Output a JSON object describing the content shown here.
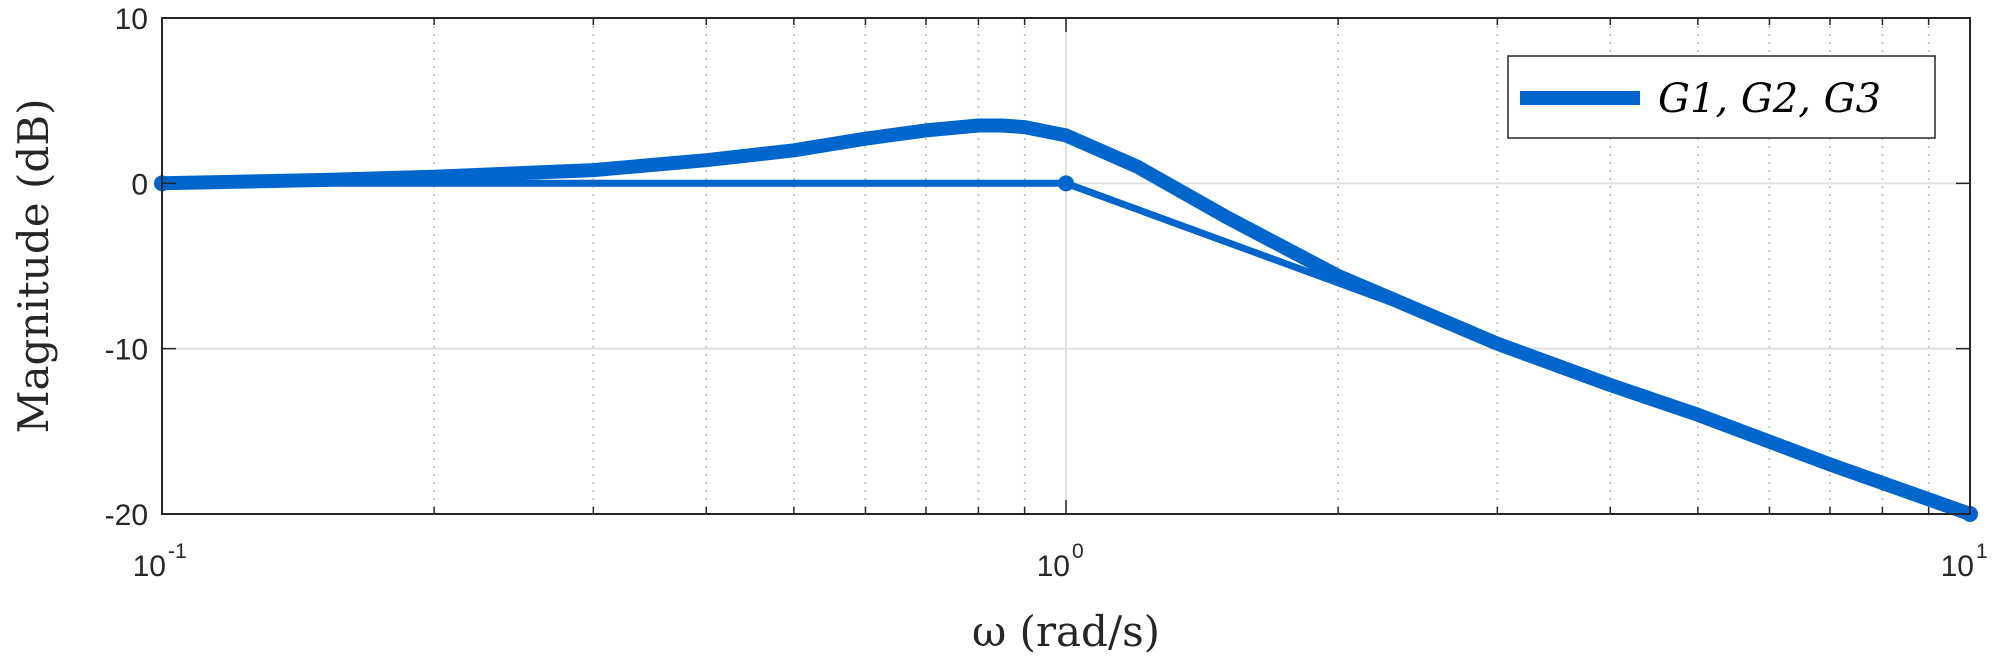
{
  "chart_data": {
    "type": "line",
    "xscale": "log",
    "xlim": [
      0.1,
      10
    ],
    "ylim": [
      -20,
      10
    ],
    "xticks": [
      {
        "value": 0.1,
        "base": "10",
        "exp": "-1"
      },
      {
        "value": 1,
        "base": "10",
        "exp": "0"
      },
      {
        "value": 10,
        "base": "10",
        "exp": "1"
      }
    ],
    "yticks": [
      {
        "value": 10,
        "label": "10"
      },
      {
        "value": 0,
        "label": "0"
      },
      {
        "value": -10,
        "label": "-10"
      },
      {
        "value": -20,
        "label": "-20"
      }
    ],
    "xlabel": "ω (rad/s)",
    "ylabel": "Magnitude (dB)",
    "grid": true,
    "minor_grid": true,
    "legend_position": "top-right",
    "legend": [
      "G1, G2, G3"
    ],
    "color": "#0066cc",
    "series": [
      {
        "name": "G1, G2, G3",
        "kind": "second-order magnitude response",
        "x": [
          0.1,
          0.15,
          0.2,
          0.3,
          0.4,
          0.5,
          0.6,
          0.7,
          0.8,
          0.85,
          0.9,
          1.0,
          1.2,
          1.5,
          2,
          3,
          4,
          5,
          7,
          10
        ],
        "y": [
          0.0,
          0.2,
          0.4,
          0.8,
          1.4,
          2.0,
          2.7,
          3.2,
          3.5,
          3.5,
          3.4,
          2.9,
          1.0,
          -2.0,
          -5.6,
          -9.7,
          -12.2,
          -14.0,
          -17.0,
          -20.0
        ]
      },
      {
        "name": "",
        "kind": "asymptote",
        "x": [
          0.1,
          1,
          10
        ],
        "y": [
          0,
          0,
          -20
        ]
      }
    ]
  }
}
